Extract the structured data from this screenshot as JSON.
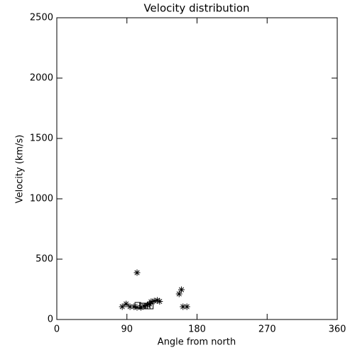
{
  "chart_data": {
    "type": "scatter",
    "title": "Velocity distribution",
    "x_label": "Angle from north",
    "y_label": "Velocity (km/s)",
    "xlim": [
      0,
      360
    ],
    "xticks": [
      0,
      90,
      180,
      270,
      360
    ],
    "ylim": [
      0,
      2500
    ],
    "yticks": [
      0,
      500,
      1000,
      1500,
      2000,
      2500
    ],
    "series": [
      {
        "symbol": "asterisk",
        "color": "#000000",
        "x": [
          84,
          89,
          94,
          99,
          103,
          103,
          108,
          112,
          116,
          119,
          121,
          125,
          129,
          132,
          157,
          160,
          162,
          167
        ],
        "values": [
          106,
          129,
          106,
          106,
          388,
          100,
          100,
          112,
          118,
          129,
          147,
          153,
          159,
          150,
          212,
          247,
          106,
          106
        ]
      },
      {
        "symbol": "square",
        "color": "#000000",
        "x": [
          104,
          110,
          116,
          120
        ],
        "values": [
          118,
          112,
          112,
          112
        ]
      }
    ]
  }
}
